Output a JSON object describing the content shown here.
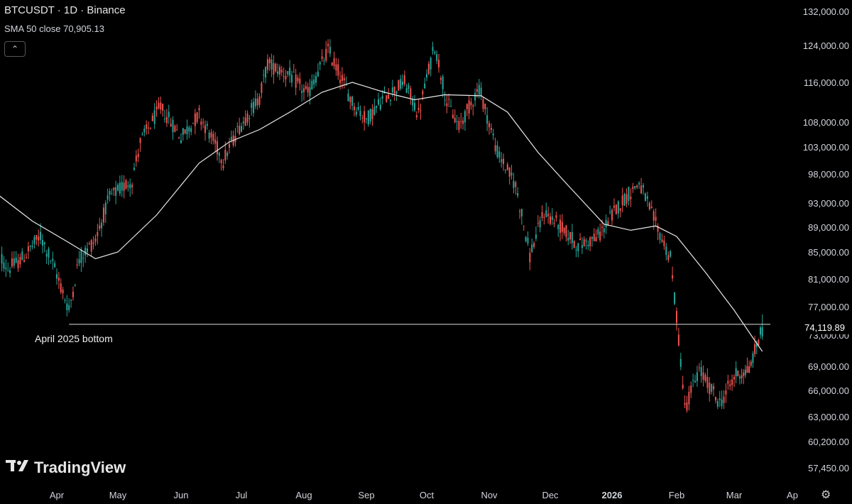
{
  "header": {
    "symbol_line": "BTCUSDT · 1D · Binance",
    "sma_line": "SMA 50 close  70,905.13"
  },
  "controls": {
    "collapse_icon": "chevron-up-icon",
    "settings_icon": "gear-icon"
  },
  "brand": {
    "logo_text": "TradingView"
  },
  "annotation": {
    "label": "April 2025 bottom",
    "level": 74508.0
  },
  "chart_data": {
    "type": "candlestick",
    "title": "BTCUSDT · 1D · Binance",
    "y_ticks": [
      {
        "label": "132,000.00",
        "value": 132000
      },
      {
        "label": "124,000.00",
        "value": 124000
      },
      {
        "label": "116,000.00",
        "value": 116000
      },
      {
        "label": "108,000.00",
        "value": 108000
      },
      {
        "label": "103,000.00",
        "value": 103000
      },
      {
        "label": "98,000.00",
        "value": 98000
      },
      {
        "label": "93,000.00",
        "value": 93000
      },
      {
        "label": "89,000.00",
        "value": 89000
      },
      {
        "label": "85,000.00",
        "value": 85000
      },
      {
        "label": "81,000.00",
        "value": 81000
      },
      {
        "label": "77,000.00",
        "value": 77000
      },
      {
        "label": "73,000.00",
        "value": 73000
      },
      {
        "label": "69,000.00",
        "value": 69000
      },
      {
        "label": "66,000.00",
        "value": 66000
      },
      {
        "label": "63,000.00",
        "value": 63000
      },
      {
        "label": "60,200.00",
        "value": 60200
      },
      {
        "label": "57,450.00",
        "value": 57450
      }
    ],
    "x_ticks": [
      {
        "label": "Apr",
        "date": "2025-04-01",
        "bold": false
      },
      {
        "label": "May",
        "date": "2025-05-01",
        "bold": false
      },
      {
        "label": "Jun",
        "date": "2025-06-01",
        "bold": false
      },
      {
        "label": "Jul",
        "date": "2025-07-01",
        "bold": false
      },
      {
        "label": "Aug",
        "date": "2025-08-01",
        "bold": false
      },
      {
        "label": "Sep",
        "date": "2025-09-01",
        "bold": false
      },
      {
        "label": "Oct",
        "date": "2025-10-01",
        "bold": false
      },
      {
        "label": "Nov",
        "date": "2025-11-01",
        "bold": false
      },
      {
        "label": "Dec",
        "date": "2025-12-01",
        "bold": false
      },
      {
        "label": "2026",
        "date": "2026-01-01",
        "bold": true
      },
      {
        "label": "Feb",
        "date": "2026-02-01",
        "bold": false
      },
      {
        "label": "Mar",
        "date": "2026-03-01",
        "bold": false
      },
      {
        "label": "Ap",
        "date": "2026-04-01",
        "bold": false
      }
    ],
    "last_price": {
      "label": "74,119.89",
      "value": 74119.89
    },
    "colors": {
      "up": "#26a69a",
      "down": "#ef5350",
      "sma": "#e8e8e8",
      "bg": "#000000",
      "text": "#d1d4dc",
      "hline": "#e0e0e0"
    },
    "price_path": [
      {
        "date": "2025-03-01",
        "close": 86000
      },
      {
        "date": "2025-03-08",
        "close": 82500
      },
      {
        "date": "2025-03-15",
        "close": 84000
      },
      {
        "date": "2025-03-24",
        "close": 87500
      },
      {
        "date": "2025-03-31",
        "close": 82500
      },
      {
        "date": "2025-04-07",
        "close": 76500
      },
      {
        "date": "2025-04-12",
        "close": 84000
      },
      {
        "date": "2025-04-20",
        "close": 87000
      },
      {
        "date": "2025-04-27",
        "close": 94000
      },
      {
        "date": "2025-05-08",
        "close": 97000
      },
      {
        "date": "2025-05-12",
        "close": 104000
      },
      {
        "date": "2025-05-22",
        "close": 111000
      },
      {
        "date": "2025-06-01",
        "close": 105000
      },
      {
        "date": "2025-06-10",
        "close": 109500
      },
      {
        "date": "2025-06-22",
        "close": 100500
      },
      {
        "date": "2025-06-30",
        "close": 107000
      },
      {
        "date": "2025-07-10",
        "close": 113000
      },
      {
        "date": "2025-07-14",
        "close": 120000
      },
      {
        "date": "2025-07-25",
        "close": 117500
      },
      {
        "date": "2025-08-03",
        "close": 113500
      },
      {
        "date": "2025-08-13",
        "close": 123000
      },
      {
        "date": "2025-08-25",
        "close": 112000
      },
      {
        "date": "2025-09-01",
        "close": 108500
      },
      {
        "date": "2025-09-10",
        "close": 113000
      },
      {
        "date": "2025-09-20",
        "close": 116000
      },
      {
        "date": "2025-09-27",
        "close": 109500
      },
      {
        "date": "2025-10-05",
        "close": 124000
      },
      {
        "date": "2025-10-11",
        "close": 112000
      },
      {
        "date": "2025-10-17",
        "close": 107000
      },
      {
        "date": "2025-10-27",
        "close": 115000
      },
      {
        "date": "2025-11-05",
        "close": 102000
      },
      {
        "date": "2025-11-14",
        "close": 96000
      },
      {
        "date": "2025-11-21",
        "close": 84500
      },
      {
        "date": "2025-11-28",
        "close": 91500
      },
      {
        "date": "2025-12-05",
        "close": 89500
      },
      {
        "date": "2025-12-15",
        "close": 86000
      },
      {
        "date": "2025-12-25",
        "close": 87500
      },
      {
        "date": "2026-01-05",
        "close": 93000
      },
      {
        "date": "2026-01-14",
        "close": 96500
      },
      {
        "date": "2026-01-22",
        "close": 89500
      },
      {
        "date": "2026-01-29",
        "close": 84000
      },
      {
        "date": "2026-02-05",
        "close": 64000
      },
      {
        "date": "2026-02-12",
        "close": 68500
      },
      {
        "date": "2026-02-22",
        "close": 64500
      },
      {
        "date": "2026-03-02",
        "close": 68000
      },
      {
        "date": "2026-03-09",
        "close": 68500
      },
      {
        "date": "2026-03-16",
        "close": 74100
      }
    ],
    "sma_path": [
      {
        "date": "2025-03-01",
        "value": 95000
      },
      {
        "date": "2025-03-20",
        "value": 90000
      },
      {
        "date": "2025-04-07",
        "value": 86500
      },
      {
        "date": "2025-04-20",
        "value": 84000
      },
      {
        "date": "2025-05-01",
        "value": 85000
      },
      {
        "date": "2025-05-20",
        "value": 91000
      },
      {
        "date": "2025-06-10",
        "value": 100000
      },
      {
        "date": "2025-06-25",
        "value": 104000
      },
      {
        "date": "2025-07-10",
        "value": 106500
      },
      {
        "date": "2025-07-25",
        "value": 110000
      },
      {
        "date": "2025-08-10",
        "value": 114000
      },
      {
        "date": "2025-08-25",
        "value": 116000
      },
      {
        "date": "2025-09-10",
        "value": 114000
      },
      {
        "date": "2025-09-25",
        "value": 112500
      },
      {
        "date": "2025-10-10",
        "value": 113500
      },
      {
        "date": "2025-10-28",
        "value": 113300
      },
      {
        "date": "2025-11-10",
        "value": 110000
      },
      {
        "date": "2025-11-25",
        "value": 102000
      },
      {
        "date": "2025-12-10",
        "value": 96000
      },
      {
        "date": "2025-12-28",
        "value": 89500
      },
      {
        "date": "2026-01-10",
        "value": 88500
      },
      {
        "date": "2026-01-22",
        "value": 89200
      },
      {
        "date": "2026-02-01",
        "value": 87500
      },
      {
        "date": "2026-02-15",
        "value": 82000
      },
      {
        "date": "2026-03-01",
        "value": 76500
      },
      {
        "date": "2026-03-10",
        "value": 73000
      },
      {
        "date": "2026-03-16",
        "value": 70905
      }
    ]
  }
}
